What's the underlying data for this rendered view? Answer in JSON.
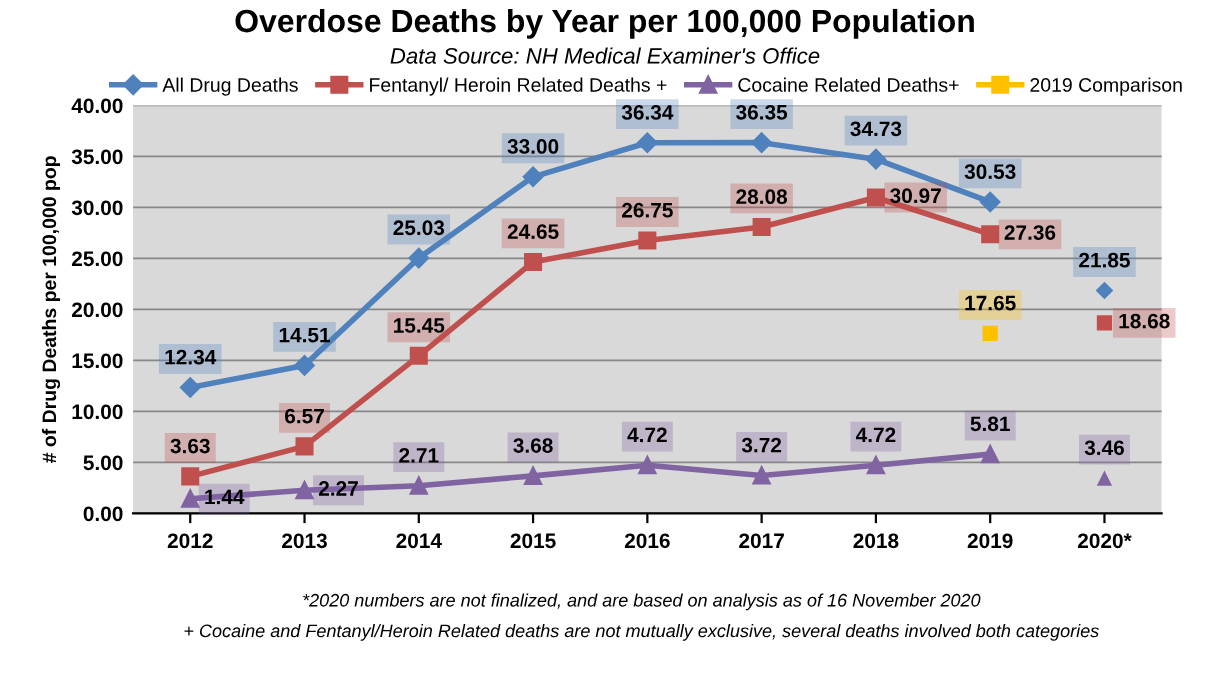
{
  "chart_data": {
    "type": "line",
    "title": "Overdose Deaths by Year per 100,000 Population",
    "subtitle": "Data Source: NH Medical Examiner's Office",
    "ylabel": "# of Drug Deaths per 100,000 pop",
    "categories": [
      "2012",
      "2013",
      "2014",
      "2015",
      "2016",
      "2017",
      "2018",
      "2019",
      "2020*"
    ],
    "series": [
      {
        "name": "All Drug Deaths",
        "color": "#4f81bd",
        "marker": "diamond",
        "values": [
          12.34,
          14.51,
          25.03,
          33.0,
          36.34,
          36.35,
          34.73,
          30.53,
          null
        ],
        "value_labels": [
          "12.34",
          "14.51",
          "25.03",
          "33.00",
          "36.34",
          "36.35",
          "34.73",
          "30.53",
          null
        ]
      },
      {
        "name": "Fentanyl/ Heroin Related Deaths +",
        "color": "#c0504d",
        "marker": "square",
        "values": [
          3.63,
          6.57,
          15.45,
          24.65,
          26.75,
          28.08,
          30.97,
          27.36,
          null
        ],
        "value_labels": [
          "3.63",
          "6.57",
          "15.45",
          "24.65",
          "26.75",
          "28.08",
          "30.97",
          "27.36",
          null
        ]
      },
      {
        "name": "Cocaine Related Deaths+",
        "color": "#8064a2",
        "marker": "triangle",
        "values": [
          1.44,
          2.27,
          2.71,
          3.68,
          4.72,
          3.72,
          4.72,
          5.81,
          null
        ],
        "value_labels": [
          "1.44",
          "2.27",
          "2.71",
          "3.68",
          "4.72",
          "3.72",
          "4.72",
          "5.81",
          null
        ]
      },
      {
        "name": "2019 Comparison",
        "type": "scatter",
        "color": "#ffc000",
        "marker": "square",
        "values": [
          null,
          null,
          null,
          null,
          null,
          null,
          null,
          17.65,
          null
        ],
        "value_labels": [
          null,
          null,
          null,
          null,
          null,
          null,
          null,
          "17.65",
          null
        ]
      },
      {
        "type": "scatter",
        "color": "#4f81bd",
        "marker": "diamond",
        "values": [
          null,
          null,
          null,
          null,
          null,
          null,
          null,
          null,
          21.85
        ],
        "value_labels": [
          null,
          null,
          null,
          null,
          null,
          null,
          null,
          null,
          "21.85"
        ]
      },
      {
        "type": "scatter",
        "color": "#c0504d",
        "marker": "square",
        "values": [
          null,
          null,
          null,
          null,
          null,
          null,
          null,
          null,
          18.68
        ],
        "value_labels": [
          null,
          null,
          null,
          null,
          null,
          null,
          null,
          null,
          "18.68"
        ]
      },
      {
        "type": "scatter",
        "color": "#8064a2",
        "marker": "triangle",
        "values": [
          null,
          null,
          null,
          null,
          null,
          null,
          null,
          null,
          3.46
        ],
        "value_labels": [
          null,
          null,
          null,
          null,
          null,
          null,
          null,
          null,
          "3.46"
        ]
      }
    ],
    "ylim": [
      0,
      40
    ],
    "yticks": [
      {
        "value": 0,
        "label": "0.00"
      },
      {
        "value": 5,
        "label": "5.00"
      },
      {
        "value": 10,
        "label": "10.00"
      },
      {
        "value": 15,
        "label": "15.00"
      },
      {
        "value": 20,
        "label": "20.00"
      },
      {
        "value": 25,
        "label": "25.00"
      },
      {
        "value": 30,
        "label": "30.00"
      },
      {
        "value": 35,
        "label": "35.00"
      },
      {
        "value": 40,
        "label": "40.00"
      }
    ],
    "grid": "y",
    "legend": "top",
    "annotations": [
      "*2020 numbers are not finalized, and are based on analysis as of 16 November 2020",
      "+ Cocaine and Fentanyl/Heroin Related deaths are not mutually exclusive, several deaths involved both categories"
    ]
  }
}
